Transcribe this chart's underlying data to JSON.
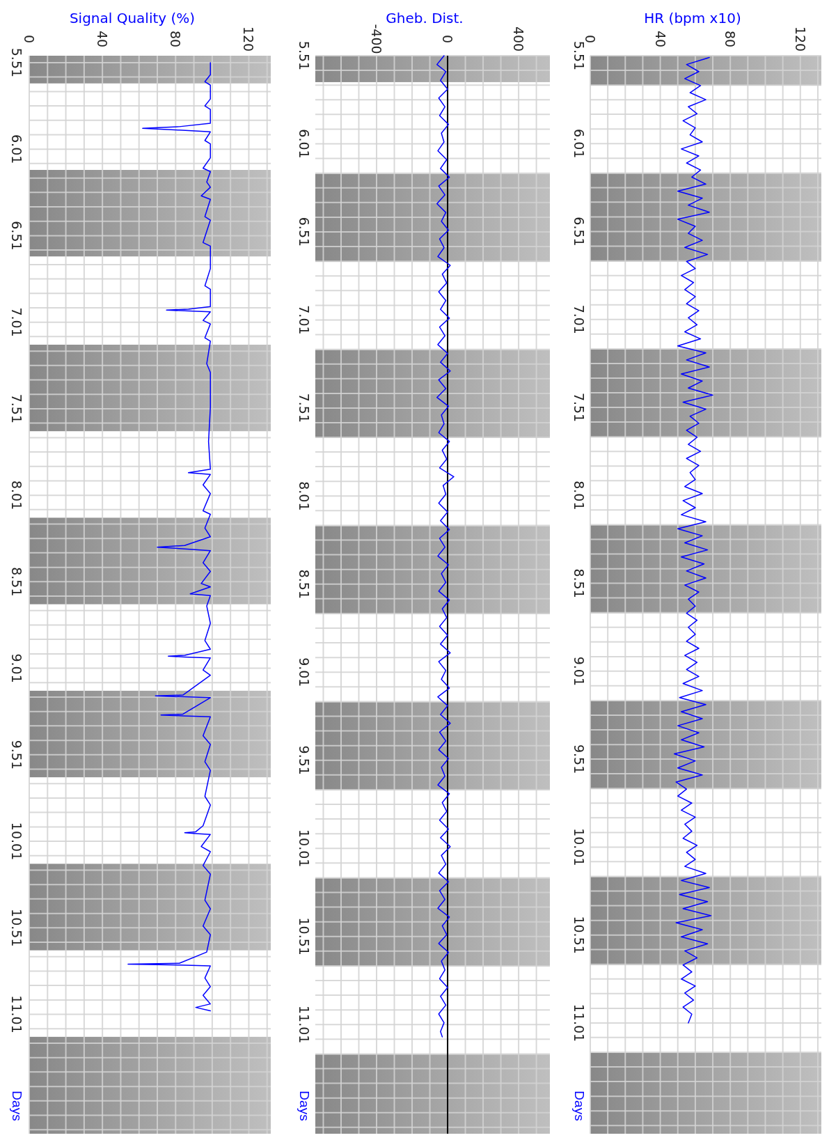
{
  "chart_data": [
    {
      "type": "line",
      "title": "Signal Quality (%)",
      "ylabel": "Days",
      "ylim": [
        11.7,
        5.47
      ],
      "xlim": [
        0,
        132
      ],
      "grid": true,
      "yticks": [
        {
          "value": 5.51,
          "label": "5.51"
        },
        {
          "value": 5.593,
          "label": null
        },
        {
          "value": 5.677,
          "label": null
        },
        {
          "value": 5.76,
          "label": null
        },
        {
          "value": 5.843,
          "label": null
        },
        {
          "value": 5.927,
          "label": null
        },
        {
          "value": 6.01,
          "label": "6.01"
        },
        {
          "value": 6.093,
          "label": null
        },
        {
          "value": 6.177,
          "label": null
        },
        {
          "value": 6.26,
          "label": null
        },
        {
          "value": 6.343,
          "label": null
        },
        {
          "value": 6.427,
          "label": null
        },
        {
          "value": 6.51,
          "label": "6.51"
        },
        {
          "value": 6.593,
          "label": null
        },
        {
          "value": 6.677,
          "label": null
        },
        {
          "value": 6.76,
          "label": null
        },
        {
          "value": 6.843,
          "label": null
        },
        {
          "value": 6.927,
          "label": null
        },
        {
          "value": 7.01,
          "label": "7.01"
        },
        {
          "value": 7.093,
          "label": null
        },
        {
          "value": 7.177,
          "label": null
        },
        {
          "value": 7.26,
          "label": null
        },
        {
          "value": 7.343,
          "label": null
        },
        {
          "value": 7.427,
          "label": null
        },
        {
          "value": 7.51,
          "label": "7.51"
        },
        {
          "value": 7.593,
          "label": null
        },
        {
          "value": 7.677,
          "label": null
        },
        {
          "value": 7.76,
          "label": null
        },
        {
          "value": 7.843,
          "label": null
        },
        {
          "value": 7.927,
          "label": null
        },
        {
          "value": 8.01,
          "label": "8.01"
        },
        {
          "value": 8.093,
          "label": null
        },
        {
          "value": 8.177,
          "label": null
        },
        {
          "value": 8.26,
          "label": null
        },
        {
          "value": 8.343,
          "label": null
        },
        {
          "value": 8.427,
          "label": null
        },
        {
          "value": 8.51,
          "label": "8.51"
        },
        {
          "value": 8.593,
          "label": null
        },
        {
          "value": 8.677,
          "label": null
        },
        {
          "value": 8.76,
          "label": null
        },
        {
          "value": 8.843,
          "label": null
        },
        {
          "value": 8.927,
          "label": null
        },
        {
          "value": 9.01,
          "label": "9.01"
        },
        {
          "value": 9.093,
          "label": null
        },
        {
          "value": 9.177,
          "label": null
        },
        {
          "value": 9.26,
          "label": null
        },
        {
          "value": 9.343,
          "label": null
        },
        {
          "value": 9.427,
          "label": null
        },
        {
          "value": 9.51,
          "label": "9.51"
        },
        {
          "value": 9.593,
          "label": null
        },
        {
          "value": 9.677,
          "label": null
        },
        {
          "value": 9.76,
          "label": null
        },
        {
          "value": 9.843,
          "label": null
        },
        {
          "value": 9.927,
          "label": null
        },
        {
          "value": 10.01,
          "label": "10.01"
        },
        {
          "value": 10.093,
          "label": null
        },
        {
          "value": 10.177,
          "label": null
        },
        {
          "value": 10.26,
          "label": null
        },
        {
          "value": 10.343,
          "label": null
        },
        {
          "value": 10.427,
          "label": null
        },
        {
          "value": 10.51,
          "label": "10.51"
        },
        {
          "value": 10.593,
          "label": null
        },
        {
          "value": 10.677,
          "label": null
        },
        {
          "value": 10.76,
          "label": null
        },
        {
          "value": 10.843,
          "label": null
        },
        {
          "value": 10.927,
          "label": null
        },
        {
          "value": 11.01,
          "label": "11.01"
        },
        {
          "value": 11.093,
          "label": null
        },
        {
          "value": 11.177,
          "label": null
        },
        {
          "value": 11.26,
          "label": null
        },
        {
          "value": 11.343,
          "label": null
        },
        {
          "value": 11.427,
          "label": null
        },
        {
          "value": 11.51,
          "label": null
        },
        {
          "value": 11.593,
          "label": null
        },
        {
          "value": 11.677,
          "label": null
        }
      ],
      "xticks": [
        {
          "value": 0,
          "label": "0"
        },
        {
          "value": 10,
          "label": null
        },
        {
          "value": 20,
          "label": null
        },
        {
          "value": 30,
          "label": null
        },
        {
          "value": 40,
          "label": "40"
        },
        {
          "value": 50,
          "label": null
        },
        {
          "value": 60,
          "label": null
        },
        {
          "value": 70,
          "label": null
        },
        {
          "value": 80,
          "label": "80"
        },
        {
          "value": 90,
          "label": null
        },
        {
          "value": 100,
          "label": null
        },
        {
          "value": 110,
          "label": null
        },
        {
          "value": 120,
          "label": "120"
        },
        {
          "value": 130,
          "label": null
        }
      ],
      "bands": [
        {
          "axis": "y",
          "from": 5.47,
          "to": 5.63,
          "color": "#a0a0a0"
        },
        {
          "axis": "y",
          "from": 6.13,
          "to": 6.63,
          "color": "#a0a0a0"
        },
        {
          "axis": "y",
          "from": 7.14,
          "to": 7.64,
          "color": "#a0a0a0"
        },
        {
          "axis": "y",
          "from": 8.14,
          "to": 8.64,
          "color": "#a0a0a0"
        },
        {
          "axis": "y",
          "from": 9.14,
          "to": 9.64,
          "color": "#a0a0a0"
        },
        {
          "axis": "y",
          "from": 10.14,
          "to": 10.64,
          "color": "#a0a0a0"
        },
        {
          "axis": "y",
          "from": 11.14,
          "to": 11.7,
          "color": "#a0a0a0"
        }
      ],
      "series": [
        {
          "color": "#0000ff",
          "values": [
            5.51,
            5.58,
            5.62,
            5.64,
            5.72,
            5.76,
            5.78,
            5.86,
            5.88,
            5.89,
            5.9,
            5.91,
            5.96,
            5.98,
            6.06,
            6.12,
            6.14,
            6.2,
            6.23,
            6.28,
            6.3,
            6.4,
            6.42,
            6.55,
            6.57,
            6.7,
            6.8,
            6.82,
            6.92,
            6.935,
            6.94,
            6.945,
            6.95,
            7.0,
            7.02,
            7.1,
            7.12,
            7.25,
            7.3,
            7.5,
            7.7,
            7.86,
            7.88,
            7.89,
            7.95,
            8.0,
            8.1,
            8.12,
            8.2,
            8.25,
            8.3,
            8.31,
            8.32,
            8.33,
            8.4,
            8.45,
            8.52,
            8.54,
            8.58,
            8.59,
            8.65,
            8.75,
            8.85,
            8.9,
            8.935,
            8.94,
            8.945,
            8.95,
            9.02,
            9.05,
            9.165,
            9.17,
            9.175,
            9.18,
            9.275,
            9.28,
            9.285,
            9.29,
            9.4,
            9.45,
            9.55,
            9.6,
            9.75,
            9.8,
            9.92,
            9.955,
            9.96,
            9.965,
            9.97,
            10.04,
            10.07,
            10.15,
            10.2,
            10.35,
            10.4,
            10.5,
            10.55,
            10.65,
            10.715,
            10.72,
            10.725,
            10.73,
            10.8,
            10.85,
            10.9,
            10.95,
            10.97,
            10.99
          ],
          "x": [
            99,
            99,
            96,
            99,
            99,
            96,
            99,
            99,
            82,
            62,
            82,
            99,
            96,
            99,
            99,
            95,
            99,
            97,
            99,
            94,
            99,
            96,
            99,
            95,
            99,
            99,
            96,
            99,
            99,
            87,
            75,
            87,
            99,
            95,
            99,
            96,
            99,
            97,
            99,
            99,
            98,
            99,
            87,
            99,
            95,
            99,
            95,
            99,
            96,
            99,
            85,
            70,
            85,
            99,
            95,
            99,
            94,
            99,
            88,
            99,
            97,
            99,
            96,
            99,
            85,
            76,
            85,
            99,
            95,
            99,
            84,
            69,
            84,
            99,
            84,
            72,
            84,
            99,
            95,
            99,
            96,
            99,
            96,
            99,
            95,
            91,
            85,
            91,
            99,
            94,
            99,
            95,
            99,
            96,
            99,
            95,
            99,
            97,
            82,
            54,
            82,
            99,
            96,
            99,
            95,
            99,
            91,
            99
          ]
        }
      ]
    },
    {
      "type": "line",
      "title": "Gheb. Dist.",
      "ylabel": "Days",
      "ylim": [
        11.63,
        5.51
      ],
      "xlim": [
        -745,
        576
      ],
      "grid": true,
      "yticks": [
        {
          "value": 5.51,
          "label": "5.51"
        },
        {
          "value": 5.593,
          "label": null
        },
        {
          "value": 5.677,
          "label": null
        },
        {
          "value": 5.76,
          "label": null
        },
        {
          "value": 5.843,
          "label": null
        },
        {
          "value": 5.927,
          "label": null
        },
        {
          "value": 6.01,
          "label": "6.01"
        },
        {
          "value": 6.093,
          "label": null
        },
        {
          "value": 6.177,
          "label": null
        },
        {
          "value": 6.26,
          "label": null
        },
        {
          "value": 6.343,
          "label": null
        },
        {
          "value": 6.427,
          "label": null
        },
        {
          "value": 6.51,
          "label": "6.51"
        },
        {
          "value": 6.593,
          "label": null
        },
        {
          "value": 6.677,
          "label": null
        },
        {
          "value": 6.76,
          "label": null
        },
        {
          "value": 6.843,
          "label": null
        },
        {
          "value": 6.927,
          "label": null
        },
        {
          "value": 7.01,
          "label": "7.01"
        },
        {
          "value": 7.093,
          "label": null
        },
        {
          "value": 7.177,
          "label": null
        },
        {
          "value": 7.26,
          "label": null
        },
        {
          "value": 7.343,
          "label": null
        },
        {
          "value": 7.427,
          "label": null
        },
        {
          "value": 7.51,
          "label": "7.51"
        },
        {
          "value": 7.593,
          "label": null
        },
        {
          "value": 7.677,
          "label": null
        },
        {
          "value": 7.76,
          "label": null
        },
        {
          "value": 7.843,
          "label": null
        },
        {
          "value": 7.927,
          "label": null
        },
        {
          "value": 8.01,
          "label": "8.01"
        },
        {
          "value": 8.093,
          "label": null
        },
        {
          "value": 8.177,
          "label": null
        },
        {
          "value": 8.26,
          "label": null
        },
        {
          "value": 8.343,
          "label": null
        },
        {
          "value": 8.427,
          "label": null
        },
        {
          "value": 8.51,
          "label": "8.51"
        },
        {
          "value": 8.593,
          "label": null
        },
        {
          "value": 8.677,
          "label": null
        },
        {
          "value": 8.76,
          "label": null
        },
        {
          "value": 8.843,
          "label": null
        },
        {
          "value": 8.927,
          "label": null
        },
        {
          "value": 9.01,
          "label": "9.01"
        },
        {
          "value": 9.093,
          "label": null
        },
        {
          "value": 9.177,
          "label": null
        },
        {
          "value": 9.26,
          "label": null
        },
        {
          "value": 9.343,
          "label": null
        },
        {
          "value": 9.427,
          "label": null
        },
        {
          "value": 9.51,
          "label": "9.51"
        },
        {
          "value": 9.593,
          "label": null
        },
        {
          "value": 9.677,
          "label": null
        },
        {
          "value": 9.76,
          "label": null
        },
        {
          "value": 9.843,
          "label": null
        },
        {
          "value": 9.927,
          "label": null
        },
        {
          "value": 10.01,
          "label": "10.01"
        },
        {
          "value": 10.093,
          "label": null
        },
        {
          "value": 10.177,
          "label": null
        },
        {
          "value": 10.26,
          "label": null
        },
        {
          "value": 10.343,
          "label": null
        },
        {
          "value": 10.427,
          "label": null
        },
        {
          "value": 10.51,
          "label": "10.51"
        },
        {
          "value": 10.593,
          "label": null
        },
        {
          "value": 10.677,
          "label": null
        },
        {
          "value": 10.76,
          "label": null
        },
        {
          "value": 10.843,
          "label": null
        },
        {
          "value": 10.927,
          "label": null
        },
        {
          "value": 11.01,
          "label": "11.01"
        },
        {
          "value": 11.093,
          "label": null
        },
        {
          "value": 11.177,
          "label": null
        },
        {
          "value": 11.26,
          "label": null
        },
        {
          "value": 11.343,
          "label": null
        },
        {
          "value": 11.427,
          "label": null
        },
        {
          "value": 11.51,
          "label": null
        },
        {
          "value": 11.593,
          "label": null
        }
      ],
      "xticks": [
        {
          "value": -700,
          "label": null
        },
        {
          "value": -600,
          "label": null
        },
        {
          "value": -500,
          "label": null
        },
        {
          "value": -400,
          "label": "-400"
        },
        {
          "value": -300,
          "label": null
        },
        {
          "value": -200,
          "label": null
        },
        {
          "value": -100,
          "label": null
        },
        {
          "value": 0,
          "label": "0"
        },
        {
          "value": 100,
          "label": null
        },
        {
          "value": 200,
          "label": null
        },
        {
          "value": 300,
          "label": null
        },
        {
          "value": 400,
          "label": "400"
        },
        {
          "value": 500,
          "label": null
        }
      ],
      "bands": [
        {
          "axis": "y",
          "from": 5.51,
          "to": 5.66,
          "color": "#a0a0a0"
        },
        {
          "axis": "y",
          "from": 6.18,
          "to": 6.68,
          "color": "#a0a0a0"
        },
        {
          "axis": "y",
          "from": 7.18,
          "to": 7.68,
          "color": "#a0a0a0"
        },
        {
          "axis": "y",
          "from": 8.18,
          "to": 8.68,
          "color": "#a0a0a0"
        },
        {
          "axis": "y",
          "from": 9.18,
          "to": 9.68,
          "color": "#a0a0a0"
        },
        {
          "axis": "y",
          "from": 10.18,
          "to": 10.68,
          "color": "#a0a0a0"
        },
        {
          "axis": "y",
          "from": 11.18,
          "to": 11.63,
          "color": "#a0a0a0"
        }
      ],
      "ref_lines": [
        {
          "axis": "x",
          "value": 0,
          "color": "#000000"
        }
      ],
      "series": [
        {
          "color": "#0000ff",
          "values": [
            5.51,
            5.56,
            5.6,
            5.65,
            5.7,
            5.75,
            5.8,
            5.85,
            5.9,
            5.95,
            6.0,
            6.05,
            6.1,
            6.15,
            6.2,
            6.25,
            6.3,
            6.35,
            6.4,
            6.45,
            6.5,
            6.55,
            6.6,
            6.65,
            6.7,
            6.75,
            6.8,
            6.85,
            6.9,
            6.95,
            7.0,
            7.05,
            7.1,
            7.15,
            7.2,
            7.25,
            7.3,
            7.35,
            7.4,
            7.45,
            7.5,
            7.55,
            7.6,
            7.65,
            7.7,
            7.75,
            7.8,
            7.85,
            7.9,
            7.95,
            8.0,
            8.05,
            8.1,
            8.15,
            8.2,
            8.25,
            8.3,
            8.35,
            8.4,
            8.45,
            8.5,
            8.55,
            8.6,
            8.65,
            8.7,
            8.75,
            8.8,
            8.85,
            8.9,
            8.95,
            9.0,
            9.05,
            9.1,
            9.15,
            9.2,
            9.25,
            9.3,
            9.35,
            9.4,
            9.45,
            9.5,
            9.55,
            9.6,
            9.65,
            9.7,
            9.75,
            9.8,
            9.85,
            9.9,
            9.95,
            10.0,
            10.05,
            10.1,
            10.15,
            10.2,
            10.25,
            10.3,
            10.35,
            10.4,
            10.45,
            10.5,
            10.55,
            10.6,
            10.65,
            10.7,
            10.75,
            10.8,
            10.85,
            10.9,
            10.95,
            11.0,
            11.05,
            11.08
          ],
          "x": [
            -20,
            -60,
            -10,
            -40,
            0,
            -50,
            -15,
            -45,
            5,
            -35,
            -20,
            -55,
            -5,
            -40,
            10,
            -50,
            -15,
            -60,
            -10,
            -35,
            5,
            -45,
            -20,
            -55,
            15,
            -30,
            -5,
            -50,
            -10,
            -40,
            10,
            -45,
            -15,
            -55,
            0,
            -40,
            15,
            -50,
            -10,
            -60,
            5,
            -35,
            -20,
            -50,
            10,
            -30,
            -5,
            -45,
            35,
            -25,
            -10,
            -50,
            0,
            -40,
            10,
            -45,
            -15,
            -55,
            5,
            -35,
            -10,
            -50,
            10,
            -30,
            -5,
            -45,
            0,
            -40,
            15,
            -50,
            -10,
            -35,
            10,
            -55,
            0,
            -40,
            15,
            -45,
            -10,
            -50,
            5,
            -35,
            -15,
            -55,
            10,
            -30,
            -5,
            -45,
            5,
            -40,
            15,
            -35,
            -10,
            -50,
            5,
            -45,
            -15,
            -55,
            10,
            -30,
            -5,
            -50,
            5,
            -35,
            -15,
            -45,
            0,
            -40,
            -10,
            -50,
            -20,
            -40,
            -30
          ]
        }
      ]
    },
    {
      "type": "line",
      "title": "HR (bpm x10)",
      "ylabel": "Days",
      "ylim": [
        11.64,
        5.51
      ],
      "xlim": [
        0,
        132
      ],
      "grid": true,
      "yticks": [
        {
          "value": 5.51,
          "label": "5.51"
        },
        {
          "value": 5.593,
          "label": null
        },
        {
          "value": 5.677,
          "label": null
        },
        {
          "value": 5.76,
          "label": null
        },
        {
          "value": 5.843,
          "label": null
        },
        {
          "value": 5.927,
          "label": null
        },
        {
          "value": 6.01,
          "label": "6.01"
        },
        {
          "value": 6.093,
          "label": null
        },
        {
          "value": 6.177,
          "label": null
        },
        {
          "value": 6.26,
          "label": null
        },
        {
          "value": 6.343,
          "label": null
        },
        {
          "value": 6.427,
          "label": null
        },
        {
          "value": 6.51,
          "label": "6.51"
        },
        {
          "value": 6.593,
          "label": null
        },
        {
          "value": 6.677,
          "label": null
        },
        {
          "value": 6.76,
          "label": null
        },
        {
          "value": 6.843,
          "label": null
        },
        {
          "value": 6.927,
          "label": null
        },
        {
          "value": 7.01,
          "label": "7.01"
        },
        {
          "value": 7.093,
          "label": null
        },
        {
          "value": 7.177,
          "label": null
        },
        {
          "value": 7.26,
          "label": null
        },
        {
          "value": 7.343,
          "label": null
        },
        {
          "value": 7.427,
          "label": null
        },
        {
          "value": 7.51,
          "label": "7.51"
        },
        {
          "value": 7.593,
          "label": null
        },
        {
          "value": 7.677,
          "label": null
        },
        {
          "value": 7.76,
          "label": null
        },
        {
          "value": 7.843,
          "label": null
        },
        {
          "value": 7.927,
          "label": null
        },
        {
          "value": 8.01,
          "label": "8.01"
        },
        {
          "value": 8.093,
          "label": null
        },
        {
          "value": 8.177,
          "label": null
        },
        {
          "value": 8.26,
          "label": null
        },
        {
          "value": 8.343,
          "label": null
        },
        {
          "value": 8.427,
          "label": null
        },
        {
          "value": 8.51,
          "label": "8.51"
        },
        {
          "value": 8.593,
          "label": null
        },
        {
          "value": 8.677,
          "label": null
        },
        {
          "value": 8.76,
          "label": null
        },
        {
          "value": 8.843,
          "label": null
        },
        {
          "value": 8.927,
          "label": null
        },
        {
          "value": 9.01,
          "label": "9.01"
        },
        {
          "value": 9.093,
          "label": null
        },
        {
          "value": 9.177,
          "label": null
        },
        {
          "value": 9.26,
          "label": null
        },
        {
          "value": 9.343,
          "label": null
        },
        {
          "value": 9.427,
          "label": null
        },
        {
          "value": 9.51,
          "label": "9.51"
        },
        {
          "value": 9.593,
          "label": null
        },
        {
          "value": 9.677,
          "label": null
        },
        {
          "value": 9.76,
          "label": null
        },
        {
          "value": 9.843,
          "label": null
        },
        {
          "value": 9.927,
          "label": null
        },
        {
          "value": 10.01,
          "label": "10.01"
        },
        {
          "value": 10.093,
          "label": null
        },
        {
          "value": 10.177,
          "label": null
        },
        {
          "value": 10.26,
          "label": null
        },
        {
          "value": 10.343,
          "label": null
        },
        {
          "value": 10.427,
          "label": null
        },
        {
          "value": 10.51,
          "label": "10.51"
        },
        {
          "value": 10.593,
          "label": null
        },
        {
          "value": 10.677,
          "label": null
        },
        {
          "value": 10.76,
          "label": null
        },
        {
          "value": 10.843,
          "label": null
        },
        {
          "value": 10.927,
          "label": null
        },
        {
          "value": 11.01,
          "label": "11.01"
        },
        {
          "value": 11.093,
          "label": null
        },
        {
          "value": 11.177,
          "label": null
        },
        {
          "value": 11.26,
          "label": null
        },
        {
          "value": 11.343,
          "label": null
        },
        {
          "value": 11.427,
          "label": null
        },
        {
          "value": 11.51,
          "label": null
        },
        {
          "value": 11.593,
          "label": null
        }
      ],
      "xticks": [
        {
          "value": 0,
          "label": "0"
        },
        {
          "value": 10,
          "label": null
        },
        {
          "value": 20,
          "label": null
        },
        {
          "value": 30,
          "label": null
        },
        {
          "value": 40,
          "label": "40"
        },
        {
          "value": 50,
          "label": null
        },
        {
          "value": 60,
          "label": null
        },
        {
          "value": 70,
          "label": null
        },
        {
          "value": 80,
          "label": "80"
        },
        {
          "value": 90,
          "label": null
        },
        {
          "value": 100,
          "label": null
        },
        {
          "value": 110,
          "label": null
        },
        {
          "value": 120,
          "label": "120"
        },
        {
          "value": 130,
          "label": null
        }
      ],
      "bands": [
        {
          "axis": "y",
          "from": 5.51,
          "to": 5.68,
          "color": "#a0a0a0"
        },
        {
          "axis": "y",
          "from": 6.18,
          "to": 6.68,
          "color": "#a0a0a0"
        },
        {
          "axis": "y",
          "from": 7.18,
          "to": 7.68,
          "color": "#a0a0a0"
        },
        {
          "axis": "y",
          "from": 8.18,
          "to": 8.68,
          "color": "#a0a0a0"
        },
        {
          "axis": "y",
          "from": 9.18,
          "to": 9.68,
          "color": "#a0a0a0"
        },
        {
          "axis": "y",
          "from": 10.18,
          "to": 10.68,
          "color": "#a0a0a0"
        },
        {
          "axis": "y",
          "from": 11.18,
          "to": 11.64,
          "color": "#a0a0a0"
        }
      ],
      "series": [
        {
          "color": "#0000ff",
          "values": [
            5.52,
            5.56,
            5.6,
            5.64,
            5.68,
            5.72,
            5.76,
            5.8,
            5.84,
            5.88,
            5.92,
            5.96,
            6.0,
            6.04,
            6.08,
            6.12,
            6.16,
            6.2,
            6.24,
            6.28,
            6.32,
            6.36,
            6.4,
            6.44,
            6.48,
            6.52,
            6.56,
            6.6,
            6.64,
            6.68,
            6.72,
            6.76,
            6.8,
            6.84,
            6.88,
            6.92,
            6.96,
            7.0,
            7.04,
            7.08,
            7.12,
            7.16,
            7.2,
            7.24,
            7.28,
            7.32,
            7.36,
            7.4,
            7.44,
            7.48,
            7.52,
            7.56,
            7.6,
            7.64,
            7.68,
            7.72,
            7.76,
            7.8,
            7.84,
            7.88,
            7.92,
            7.96,
            8.0,
            8.04,
            8.08,
            8.12,
            8.16,
            8.2,
            8.24,
            8.28,
            8.32,
            8.36,
            8.4,
            8.44,
            8.48,
            8.52,
            8.56,
            8.6,
            8.64,
            8.68,
            8.72,
            8.76,
            8.8,
            8.84,
            8.88,
            8.92,
            8.96,
            9.0,
            9.04,
            9.08,
            9.12,
            9.16,
            9.2,
            9.24,
            9.28,
            9.32,
            9.36,
            9.4,
            9.44,
            9.48,
            9.52,
            9.56,
            9.6,
            9.64,
            9.68,
            9.72,
            9.76,
            9.8,
            9.84,
            9.88,
            9.92,
            9.96,
            10.0,
            10.04,
            10.08,
            10.12,
            10.16,
            10.2,
            10.24,
            10.28,
            10.32,
            10.36,
            10.4,
            10.44,
            10.48,
            10.52,
            10.56,
            10.6,
            10.64,
            10.68,
            10.72,
            10.76,
            10.8,
            10.84,
            10.88,
            10.92,
            10.96,
            11.01
          ],
          "x": [
            68,
            55,
            62,
            54,
            63,
            57,
            66,
            56,
            61,
            53,
            60,
            57,
            64,
            52,
            62,
            55,
            63,
            58,
            66,
            50,
            64,
            56,
            68,
            50,
            60,
            56,
            64,
            54,
            67,
            55,
            60,
            52,
            59,
            54,
            60,
            55,
            62,
            56,
            61,
            54,
            63,
            50,
            66,
            55,
            68,
            52,
            64,
            56,
            70,
            53,
            66,
            57,
            62,
            55,
            61,
            56,
            63,
            55,
            62,
            57,
            60,
            54,
            64,
            53,
            60,
            52,
            66,
            50,
            64,
            54,
            67,
            52,
            65,
            55,
            66,
            54,
            62,
            56,
            60,
            55,
            61,
            56,
            60,
            55,
            62,
            54,
            61,
            55,
            62,
            53,
            64,
            51,
            66,
            52,
            64,
            50,
            62,
            52,
            65,
            48,
            60,
            50,
            64,
            49,
            55,
            50,
            58,
            52,
            60,
            54,
            58,
            53,
            61,
            55,
            60,
            54,
            66,
            52,
            68,
            51,
            67,
            53,
            69,
            49,
            64,
            52,
            67,
            54,
            61,
            53,
            58,
            52,
            60,
            54,
            59,
            53,
            58,
            56
          ]
        }
      ]
    }
  ]
}
